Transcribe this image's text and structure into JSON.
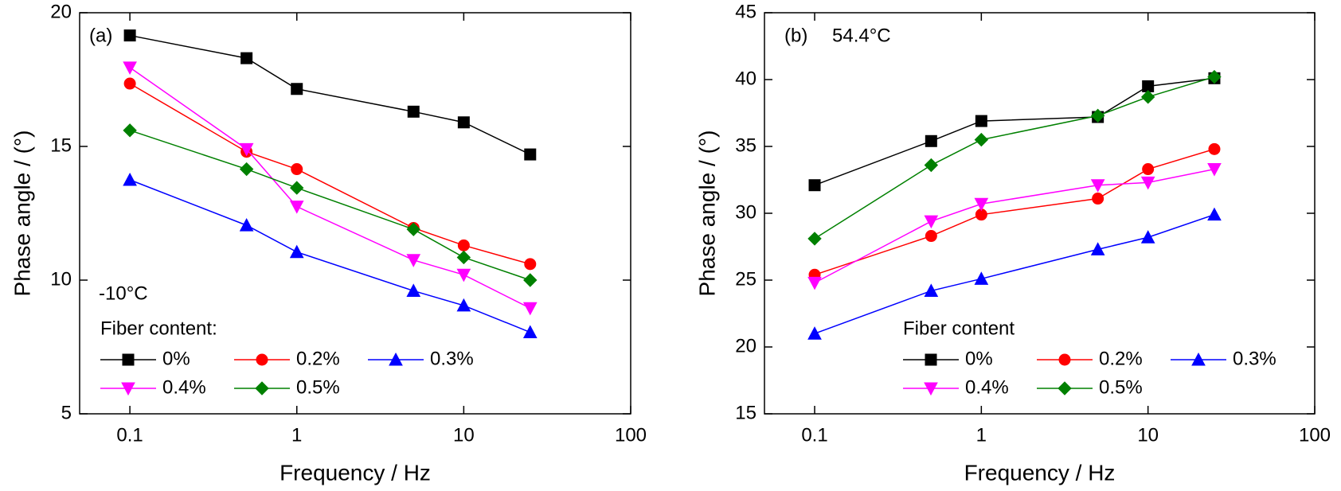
{
  "chart_data": [
    {
      "type": "line",
      "x_label": "Frequency / Hz",
      "y_label": "Phase angle / (°)",
      "annotations": [
        "(a)",
        "-10°C"
      ],
      "legend_title": "Fiber content:",
      "legend": "lower left",
      "log_x": true,
      "xlim": [
        0.05,
        100
      ],
      "xticks": [
        0.1,
        1,
        10,
        100
      ],
      "ylim": [
        5,
        20
      ],
      "yticks": [
        5,
        10,
        15,
        20
      ],
      "x": [
        0.1,
        0.5,
        1,
        5,
        10,
        25
      ],
      "series": [
        {
          "name": "0%",
          "color": "#000000",
          "marker": "square",
          "values": [
            19.15,
            18.3,
            17.15,
            16.3,
            15.9,
            14.7
          ]
        },
        {
          "name": "0.2%",
          "color": "#ff0000",
          "marker": "circle",
          "values": [
            17.35,
            14.8,
            14.15,
            11.95,
            11.3,
            10.6
          ]
        },
        {
          "name": "0.3%",
          "color": "#0000ff",
          "marker": "triangle-up",
          "values": [
            13.75,
            12.05,
            11.05,
            9.6,
            9.05,
            8.05
          ]
        },
        {
          "name": "0.4%",
          "color": "#ff00ff",
          "marker": "triangle-down",
          "values": [
            17.95,
            14.9,
            12.75,
            10.75,
            10.2,
            8.95
          ]
        },
        {
          "name": "0.5%",
          "color": "#008000",
          "marker": "diamond",
          "values": [
            15.6,
            14.15,
            13.45,
            11.9,
            10.85,
            10.0
          ]
        }
      ]
    },
    {
      "type": "line",
      "x_label": "Frequency / Hz",
      "y_label": "Phase angle / (°)",
      "annotations": [
        "(b)",
        "54.4°C"
      ],
      "legend_title": "Fiber content",
      "legend": "lower center",
      "log_x": true,
      "xlim": [
        0.05,
        100
      ],
      "xticks": [
        0.1,
        1,
        10,
        100
      ],
      "ylim": [
        15,
        45
      ],
      "yticks": [
        15,
        20,
        25,
        30,
        35,
        40,
        45
      ],
      "x": [
        0.1,
        0.5,
        1,
        5,
        10,
        25
      ],
      "series": [
        {
          "name": "0%",
          "color": "#000000",
          "marker": "square",
          "values": [
            32.1,
            35.4,
            36.9,
            37.2,
            39.5,
            40.1
          ]
        },
        {
          "name": "0.2%",
          "color": "#ff0000",
          "marker": "circle",
          "values": [
            25.4,
            28.3,
            29.9,
            31.1,
            33.3,
            34.8
          ]
        },
        {
          "name": "0.3%",
          "color": "#0000ff",
          "marker": "triangle-up",
          "values": [
            21.0,
            24.2,
            25.1,
            27.3,
            28.2,
            29.9
          ]
        },
        {
          "name": "0.4%",
          "color": "#ff00ff",
          "marker": "triangle-down",
          "values": [
            24.8,
            29.4,
            30.7,
            32.1,
            32.3,
            33.3
          ]
        },
        {
          "name": "0.5%",
          "color": "#008000",
          "marker": "diamond",
          "values": [
            28.1,
            33.6,
            35.5,
            37.3,
            38.7,
            40.2
          ]
        }
      ]
    }
  ]
}
